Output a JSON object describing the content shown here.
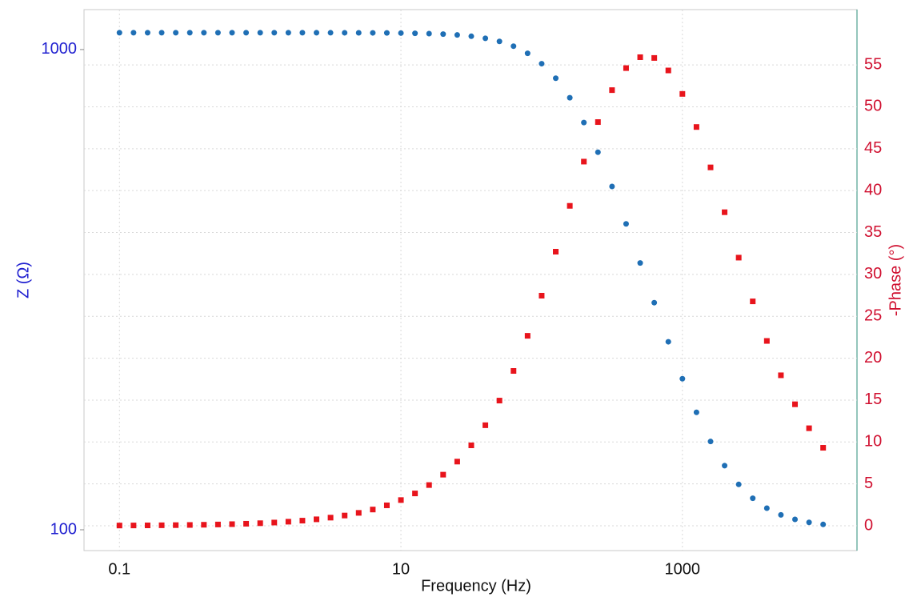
{
  "chart_data": {
    "type": "scatter",
    "x_label": "Frequency (Hz)",
    "y_label": "Z (Ω)",
    "y2_label": "-Phase (°)",
    "x_log": true,
    "y_log": true,
    "grid": true,
    "x": [
      0.1,
      0.1259,
      0.1585,
      0.1995,
      0.2512,
      0.3162,
      0.3981,
      0.5012,
      0.631,
      0.7943,
      1,
      1.259,
      1.585,
      1.995,
      2.512,
      3.162,
      3.981,
      5.012,
      6.31,
      7.943,
      10,
      12.59,
      15.85,
      19.95,
      25.12,
      31.62,
      39.81,
      50.12,
      63.1,
      79.43,
      100,
      125.9,
      158.5,
      199.5,
      251.2,
      316.2,
      398.1,
      501.2,
      631,
      794.3,
      1000,
      1259,
      1585,
      1995,
      2512,
      3162,
      3981,
      5012,
      6310,
      7943,
      10000
    ],
    "series": [
      {
        "color": "#1f6fb5",
        "marker": "circle",
        "axis": "y",
        "values": [
          1084,
          1084,
          1084,
          1084,
          1084,
          1084,
          1084,
          1084,
          1084,
          1084,
          1084,
          1084,
          1084,
          1084,
          1084,
          1083.8,
          1083.7,
          1083.5,
          1083.2,
          1082.8,
          1082.1,
          1081.0,
          1079.3,
          1076.6,
          1072.4,
          1065.7,
          1055.4,
          1039.7,
          1016.2,
          982.0,
          934.4,
          871.4,
          793.7,
          704.7,
          611.2,
          518.7,
          433.5,
          359.4,
          297.1,
          246.3,
          206.3,
          175.6,
          152.7,
          136.0,
          124.3,
          116.3,
          110.9,
          107.4,
          105.1,
          103.6,
          102.6
        ]
      },
      {
        "color": "#e8141c",
        "marker": "square",
        "axis": "y2",
        "values": [
          0.031,
          0.039,
          0.049,
          0.061,
          0.077,
          0.097,
          0.122,
          0.154,
          0.194,
          0.244,
          0.307,
          0.387,
          0.487,
          0.613,
          0.772,
          0.972,
          1.224,
          1.541,
          1.94,
          2.44,
          3.07,
          3.86,
          4.86,
          6.1,
          7.66,
          9.6,
          12.0,
          14.94,
          18.48,
          22.67,
          27.46,
          32.71,
          38.18,
          43.46,
          48.18,
          51.99,
          54.62,
          55.92,
          55.83,
          54.34,
          51.54,
          47.59,
          42.77,
          37.42,
          32.0,
          26.78,
          22.06,
          17.96,
          14.5,
          11.64,
          9.31
        ]
      }
    ],
    "xlim": [
      0.056,
      17400
    ],
    "xticks": [
      0.1,
      10,
      1000
    ],
    "ylim": [
      90.5,
      1211
    ],
    "yticks": [
      100,
      1000
    ],
    "y2lim": [
      -2.96,
      61.6
    ],
    "y2ticks": [
      0,
      5,
      10,
      15,
      20,
      25,
      30,
      35,
      40,
      45,
      50,
      55
    ]
  }
}
